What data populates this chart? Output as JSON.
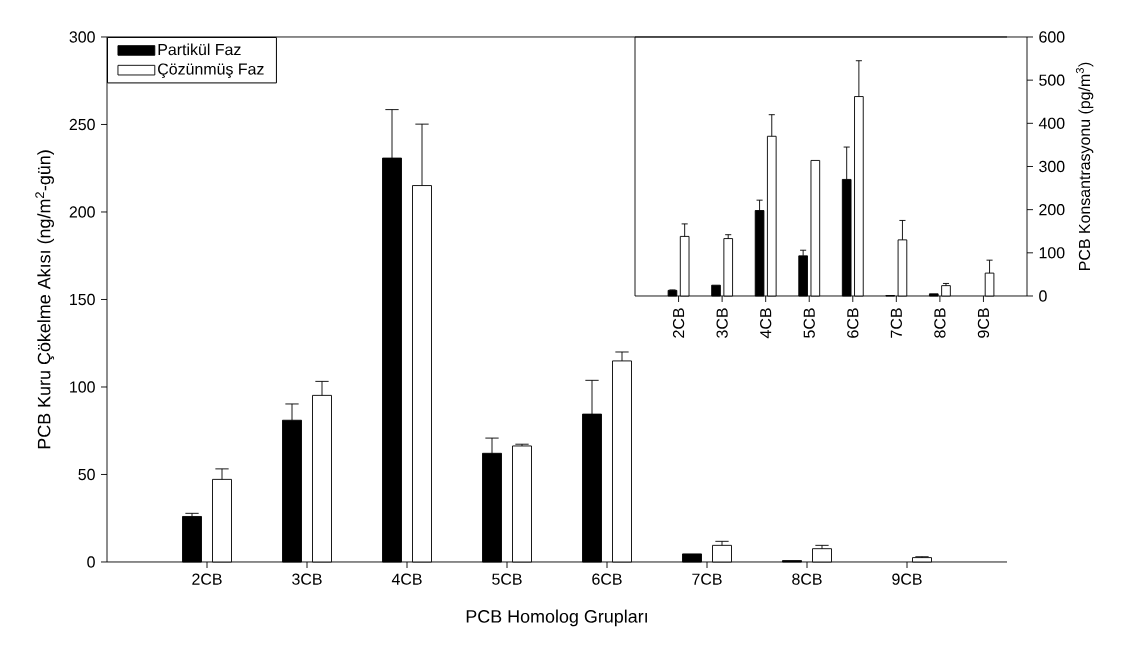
{
  "chart_data": [
    {
      "type": "bar",
      "xlabel": "PCB Homolog Grupları",
      "ylabel": "PCB Kuru Çökelme Akısı (ng/m$^{2}$-gün)",
      "categories": [
        "2CB",
        "3CB",
        "4CB",
        "5CB",
        "6CB",
        "7CB",
        "8CB",
        "9CB"
      ],
      "ylim": [
        0,
        300
      ],
      "yticks": [
        0,
        50,
        100,
        150,
        200,
        250,
        300
      ],
      "legend": "top left",
      "series": [
        {
          "name": "Partikül Faz",
          "color": "#000000",
          "values": [
            26.0,
            81.0,
            230.8,
            62.1,
            84.5,
            4.6,
            0.8,
            null
          ],
          "errors": [
            [
              26.0,
              27.8
            ],
            [
              81.0,
              90.3
            ],
            [
              230.8,
              258.5
            ],
            [
              62.1,
              70.8
            ],
            [
              84.5,
              103.8
            ],
            null,
            null,
            null
          ]
        },
        {
          "name": "Çözünmüş Faz",
          "color": "#ffffff",
          "values": [
            47.2,
            95.2,
            215.1,
            66.3,
            114.9,
            9.5,
            7.6,
            2.5
          ],
          "errors": [
            [
              47.2,
              53.2
            ],
            [
              95.2,
              103.2
            ],
            [
              215.1,
              250.2
            ],
            [
              66.3,
              67.3
            ],
            [
              114.9,
              120.0
            ],
            [
              9.5,
              11.8
            ],
            [
              7.6,
              9.5
            ],
            [
              2.5,
              3.0
            ]
          ]
        }
      ]
    },
    {
      "type": "bar",
      "ylabel": "PCB Konsantrasyonu (pg/m$^{3}$)",
      "categories": [
        "2CB",
        "3CB",
        "4CB",
        "5CB",
        "6CB",
        "7CB",
        "8CB",
        "9CB"
      ],
      "ylim": [
        0,
        600
      ],
      "yticks": [
        0,
        100,
        200,
        300,
        400,
        500,
        600
      ],
      "series": [
        {
          "color": "#000000",
          "values": [
            13,
            25,
            198,
            93,
            270,
            1,
            5,
            null
          ],
          "errors": [
            [
              13,
              14
            ],
            null,
            [
              198,
              222
            ],
            [
              93,
              106
            ],
            [
              270,
              345
            ],
            null,
            null,
            null
          ]
        },
        {
          "color": "#ffffff",
          "values": [
            138,
            133,
            370,
            314,
            462,
            130,
            24,
            53
          ],
          "errors": [
            [
              138,
              167
            ],
            [
              133,
              142
            ],
            [
              370,
              420
            ],
            null,
            [
              462,
              545
            ],
            [
              130,
              175
            ],
            [
              24,
              29
            ],
            [
              53,
              83
            ]
          ]
        }
      ]
    }
  ]
}
